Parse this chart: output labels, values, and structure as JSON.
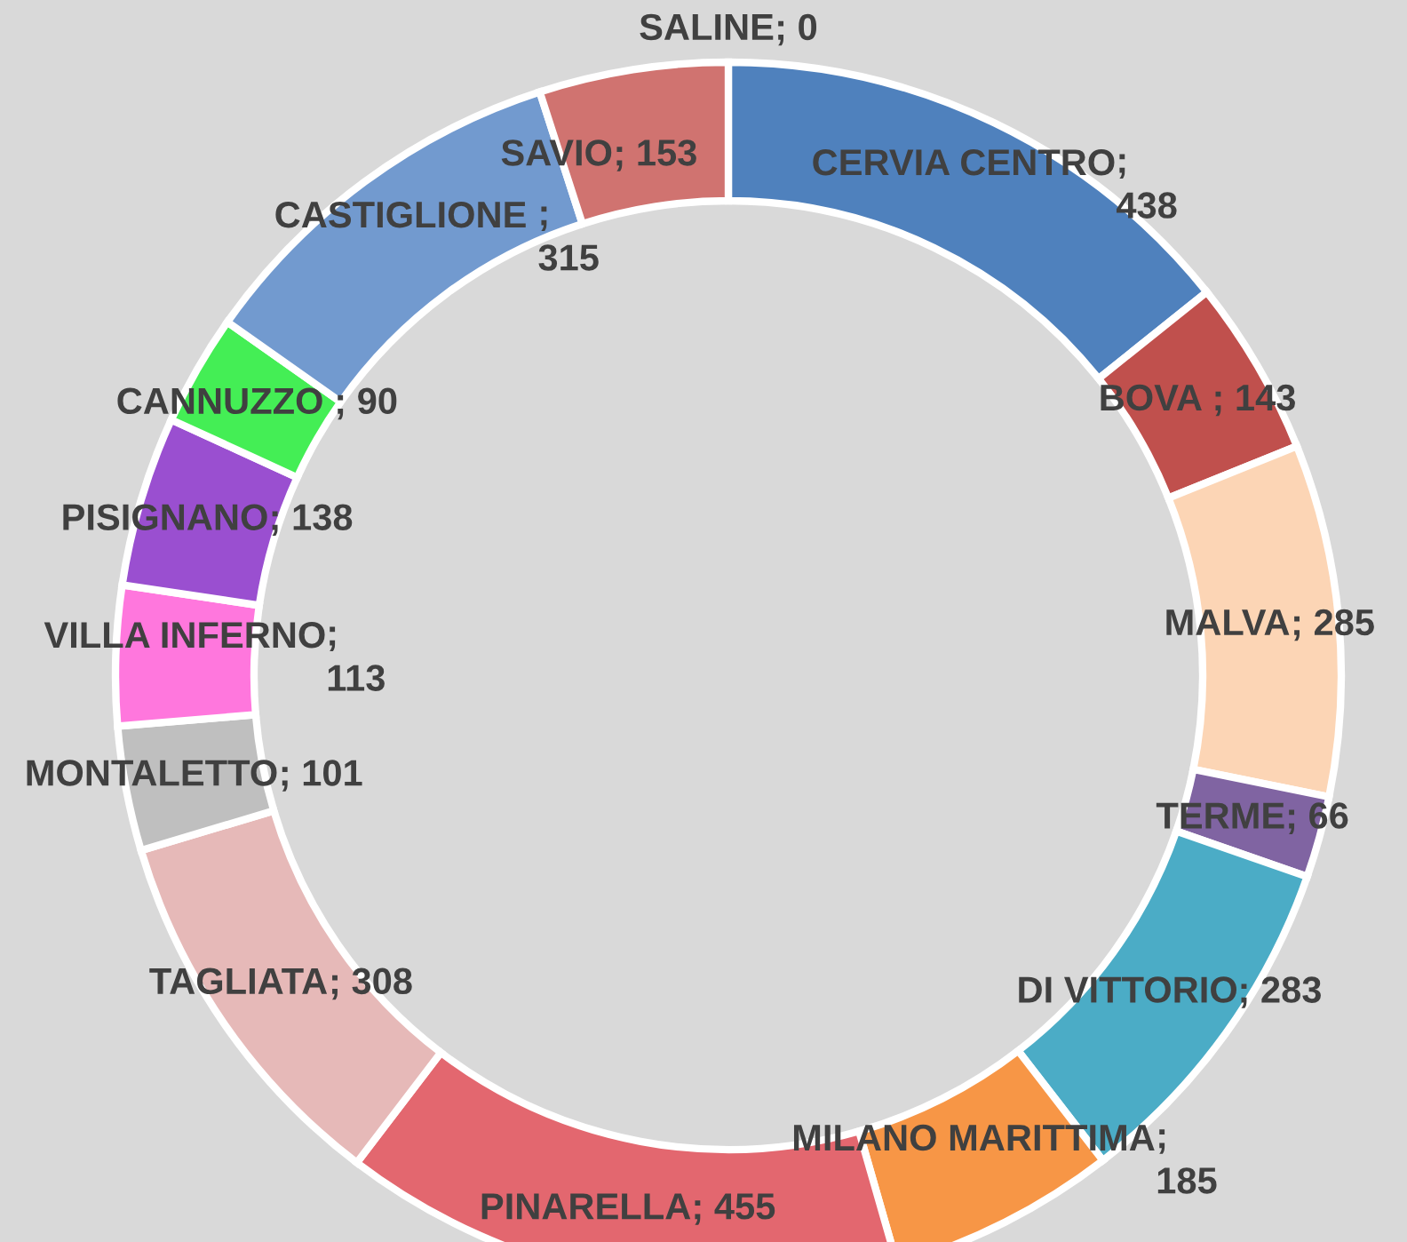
{
  "chart_data": {
    "type": "donut",
    "categories": [
      "CERVIA CENTRO",
      "BOVA ",
      "MALVA",
      "TERME",
      "DI VITTORIO",
      "MILANO MARITTIMA",
      "PINARELLA",
      "TAGLIATA",
      "MONTALETTO",
      "VILLA INFERNO",
      "PISIGNANO",
      "CANNUZZO ",
      "CASTIGLIONE ",
      "SAVIO",
      "SALINE"
    ],
    "values": [
      438,
      143,
      285,
      66,
      283,
      185,
      455,
      308,
      101,
      113,
      138,
      90,
      315,
      153,
      0
    ],
    "colors": [
      "#4f81bd",
      "#c0504d",
      "#fcd5b5",
      "#8064a2",
      "#4bacc6",
      "#f79646",
      "#e3676f",
      "#e6b9b8",
      "#bfbfbf",
      "#ff77dd",
      "#9a4fd0",
      "#44ee55",
      "#729acf",
      "#d07370",
      "#4f81bd"
    ],
    "value_labels": [
      "; 438",
      "; 143",
      "; 285",
      "; 66",
      "; 283",
      "; 185",
      "; 455",
      "; 308",
      "; 101",
      "; 113",
      "; 138",
      "; 90",
      "; 315",
      "; 153",
      "; 0"
    ]
  }
}
